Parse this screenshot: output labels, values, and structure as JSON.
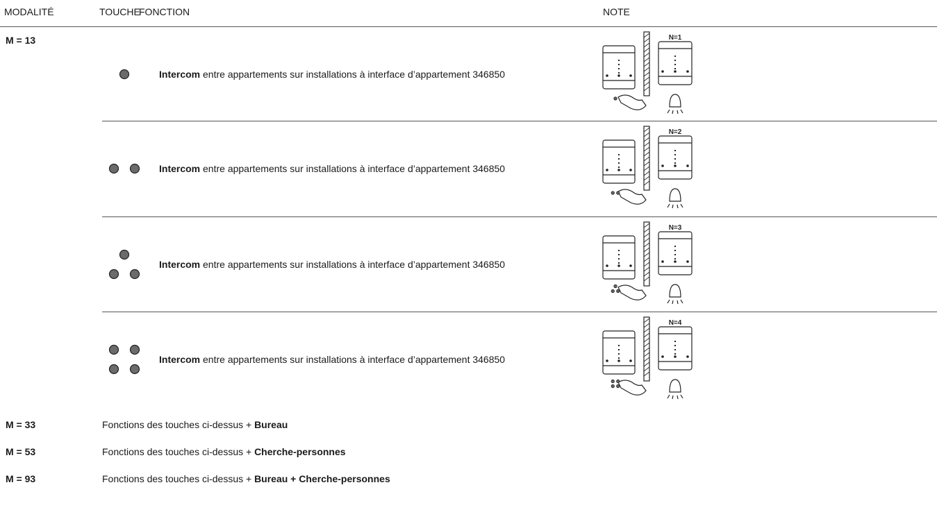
{
  "header": {
    "columns": [
      "MODALITÉ",
      "TOUCHE",
      "FONCTION",
      "NOTE"
    ]
  },
  "main_mode": "M = 13",
  "rows": [
    {
      "bold": "Intercom",
      "text": "entre appartements sur installations à interface d’appartement 346850",
      "note": "N=1"
    },
    {
      "bold": "Intercom",
      "text": "entre appartements sur installations à interface d’appartement 346850",
      "note": "N=2"
    },
    {
      "bold": "Intercom",
      "text": "entre appartements sur installations à interface d’appartement 346850",
      "note": "N=3"
    },
    {
      "bold": "Intercom",
      "text": "entre appartements sur installations à interface d’appartement 346850",
      "note": "N=4"
    }
  ],
  "extra_modes": [
    {
      "mode": "M = 33",
      "text": "Fonctions des touches ci-dessus +",
      "bold": "Bureau"
    },
    {
      "mode": "M = 53",
      "text": "Fonctions des touches ci-dessus +",
      "bold": "Cherche-personnes"
    },
    {
      "mode": "M = 93",
      "text": "Fonctions des touches ci-dessus +",
      "bold": "Bureau + Cherche-personnes"
    }
  ]
}
